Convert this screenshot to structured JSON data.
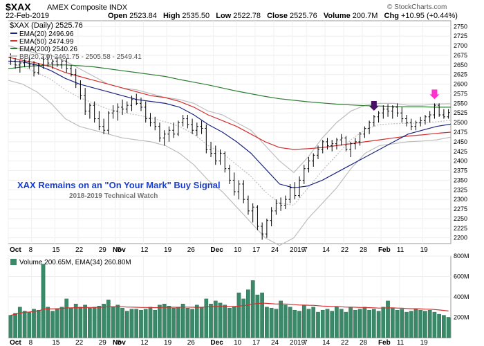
{
  "header": {
    "ticker": "$XAX",
    "name": "AMEX Composite INDX",
    "date": "22-Feb-2019",
    "brand": "© StockCharts.com",
    "open_label": "Open",
    "open": "2523.84",
    "high_label": "High",
    "high": "2535.50",
    "low_label": "Low",
    "low": "2522.78",
    "close_label": "Close",
    "close": "2525.76",
    "volume_label": "Volume",
    "volume": "200.7M",
    "chg_label": "Chg",
    "chg": "+10.95 (+0.44%)"
  },
  "legend": {
    "price": "$XAX (Daily) 2525.76",
    "ema20": "EMA(20) 2496.96",
    "ema50": "EMA(50) 2474.99",
    "ema200": "EMA(200) 2540.26",
    "bb": "BB(20,2.0) 2461.75 - 2505.58 - 2549.41",
    "volume": "Volume 200.65M, EMA(34) 260.80M"
  },
  "annotation": {
    "title": "XAX Remains on an \"On Your Mark\" Buy Signal",
    "subtitle": "2018-2019 Technical Watch"
  },
  "colors": {
    "ema20": "#1a237e",
    "ema50": "#d32f2f",
    "ema200": "#2e7d32",
    "bb": "#bdbdbd",
    "volume": "#3a8a6a",
    "arrow1": "#4a0f66",
    "arrow2": "#ff33cc"
  },
  "chart_data": {
    "type": "line",
    "price_axis": {
      "ticks": [
        2200,
        2225,
        2250,
        2275,
        2300,
        2325,
        2350,
        2375,
        2400,
        2425,
        2450,
        2475,
        2500,
        2525,
        2550,
        2575,
        2600,
        2625,
        2650,
        2675,
        2700,
        2725,
        2750
      ],
      "range": [
        2185,
        2765
      ]
    },
    "volume_axis": {
      "ticks": [
        "200M",
        "400M",
        "600M",
        "800M"
      ],
      "values": [
        200,
        400,
        600,
        800
      ],
      "range": [
        0,
        800
      ]
    },
    "x_labels": [
      "Oct",
      "8",
      "15",
      "22",
      "29",
      "Nov",
      "5",
      "12",
      "19",
      "26",
      "Dec",
      "10",
      "17",
      "24",
      "2019",
      "7",
      "14",
      "22",
      "28",
      "Feb",
      "11",
      "19"
    ],
    "x_label_index": [
      0,
      5,
      10,
      15,
      20,
      23,
      24,
      29,
      34,
      39,
      44,
      49,
      53,
      57,
      61,
      64,
      68,
      72,
      76,
      80,
      84,
      89
    ],
    "bars": [
      {
        "o": 2670,
        "h": 2680,
        "l": 2650,
        "c": 2660
      },
      {
        "o": 2660,
        "h": 2668,
        "l": 2640,
        "c": 2650
      },
      {
        "o": 2650,
        "h": 2662,
        "l": 2630,
        "c": 2655
      },
      {
        "o": 2655,
        "h": 2665,
        "l": 2645,
        "c": 2660
      },
      {
        "o": 2660,
        "h": 2670,
        "l": 2640,
        "c": 2650
      },
      {
        "o": 2650,
        "h": 2660,
        "l": 2620,
        "c": 2630
      },
      {
        "o": 2630,
        "h": 2655,
        "l": 2625,
        "c": 2650
      },
      {
        "o": 2650,
        "h": 2672,
        "l": 2640,
        "c": 2665
      },
      {
        "o": 2665,
        "h": 2675,
        "l": 2645,
        "c": 2655
      },
      {
        "o": 2655,
        "h": 2665,
        "l": 2640,
        "c": 2660
      },
      {
        "o": 2660,
        "h": 2670,
        "l": 2645,
        "c": 2650
      },
      {
        "o": 2650,
        "h": 2665,
        "l": 2640,
        "c": 2660
      },
      {
        "o": 2660,
        "h": 2668,
        "l": 2630,
        "c": 2640
      },
      {
        "o": 2640,
        "h": 2650,
        "l": 2620,
        "c": 2625
      },
      {
        "o": 2625,
        "h": 2640,
        "l": 2590,
        "c": 2600
      },
      {
        "o": 2600,
        "h": 2610,
        "l": 2560,
        "c": 2570
      },
      {
        "o": 2570,
        "h": 2590,
        "l": 2520,
        "c": 2530
      },
      {
        "o": 2530,
        "h": 2550,
        "l": 2510,
        "c": 2545
      },
      {
        "o": 2545,
        "h": 2555,
        "l": 2500,
        "c": 2510
      },
      {
        "o": 2510,
        "h": 2530,
        "l": 2480,
        "c": 2490
      },
      {
        "o": 2490,
        "h": 2510,
        "l": 2470,
        "c": 2480
      },
      {
        "o": 2480,
        "h": 2530,
        "l": 2470,
        "c": 2525
      },
      {
        "o": 2525,
        "h": 2545,
        "l": 2510,
        "c": 2530
      },
      {
        "o": 2530,
        "h": 2550,
        "l": 2505,
        "c": 2540
      },
      {
        "o": 2540,
        "h": 2560,
        "l": 2520,
        "c": 2535
      },
      {
        "o": 2535,
        "h": 2555,
        "l": 2525,
        "c": 2545
      },
      {
        "o": 2545,
        "h": 2570,
        "l": 2530,
        "c": 2560
      },
      {
        "o": 2560,
        "h": 2575,
        "l": 2545,
        "c": 2550
      },
      {
        "o": 2550,
        "h": 2565,
        "l": 2530,
        "c": 2540
      },
      {
        "o": 2540,
        "h": 2555,
        "l": 2500,
        "c": 2510
      },
      {
        "o": 2510,
        "h": 2525,
        "l": 2490,
        "c": 2500
      },
      {
        "o": 2500,
        "h": 2515,
        "l": 2480,
        "c": 2490
      },
      {
        "o": 2490,
        "h": 2500,
        "l": 2450,
        "c": 2460
      },
      {
        "o": 2460,
        "h": 2480,
        "l": 2440,
        "c": 2470
      },
      {
        "o": 2470,
        "h": 2490,
        "l": 2450,
        "c": 2480
      },
      {
        "o": 2480,
        "h": 2500,
        "l": 2460,
        "c": 2470
      },
      {
        "o": 2470,
        "h": 2505,
        "l": 2465,
        "c": 2500
      },
      {
        "o": 2500,
        "h": 2520,
        "l": 2490,
        "c": 2510
      },
      {
        "o": 2510,
        "h": 2520,
        "l": 2485,
        "c": 2495
      },
      {
        "o": 2495,
        "h": 2510,
        "l": 2470,
        "c": 2480
      },
      {
        "o": 2480,
        "h": 2500,
        "l": 2465,
        "c": 2490
      },
      {
        "o": 2490,
        "h": 2505,
        "l": 2470,
        "c": 2485
      },
      {
        "o": 2485,
        "h": 2495,
        "l": 2420,
        "c": 2430
      },
      {
        "o": 2430,
        "h": 2450,
        "l": 2410,
        "c": 2420
      },
      {
        "o": 2420,
        "h": 2440,
        "l": 2390,
        "c": 2400
      },
      {
        "o": 2400,
        "h": 2430,
        "l": 2390,
        "c": 2420
      },
      {
        "o": 2420,
        "h": 2425,
        "l": 2370,
        "c": 2380
      },
      {
        "o": 2380,
        "h": 2390,
        "l": 2340,
        "c": 2350
      },
      {
        "o": 2350,
        "h": 2370,
        "l": 2310,
        "c": 2320
      },
      {
        "o": 2320,
        "h": 2350,
        "l": 2300,
        "c": 2340
      },
      {
        "o": 2340,
        "h": 2350,
        "l": 2290,
        "c": 2300
      },
      {
        "o": 2300,
        "h": 2310,
        "l": 2260,
        "c": 2270
      },
      {
        "o": 2270,
        "h": 2290,
        "l": 2240,
        "c": 2280
      },
      {
        "o": 2280,
        "h": 2285,
        "l": 2220,
        "c": 2230
      },
      {
        "o": 2230,
        "h": 2240,
        "l": 2195,
        "c": 2210
      },
      {
        "o": 2210,
        "h": 2250,
        "l": 2200,
        "c": 2245
      },
      {
        "o": 2245,
        "h": 2280,
        "l": 2230,
        "c": 2270
      },
      {
        "o": 2270,
        "h": 2300,
        "l": 2260,
        "c": 2290
      },
      {
        "o": 2290,
        "h": 2305,
        "l": 2270,
        "c": 2285
      },
      {
        "o": 2285,
        "h": 2310,
        "l": 2275,
        "c": 2300
      },
      {
        "o": 2300,
        "h": 2340,
        "l": 2290,
        "c": 2330
      },
      {
        "o": 2330,
        "h": 2345,
        "l": 2300,
        "c": 2310
      },
      {
        "o": 2310,
        "h": 2360,
        "l": 2305,
        "c": 2350
      },
      {
        "o": 2350,
        "h": 2390,
        "l": 2340,
        "c": 2380
      },
      {
        "o": 2380,
        "h": 2410,
        "l": 2370,
        "c": 2400
      },
      {
        "o": 2400,
        "h": 2420,
        "l": 2385,
        "c": 2415
      },
      {
        "o": 2415,
        "h": 2440,
        "l": 2405,
        "c": 2430
      },
      {
        "o": 2430,
        "h": 2455,
        "l": 2420,
        "c": 2450
      },
      {
        "o": 2450,
        "h": 2460,
        "l": 2430,
        "c": 2440
      },
      {
        "o": 2440,
        "h": 2455,
        "l": 2425,
        "c": 2445
      },
      {
        "o": 2445,
        "h": 2460,
        "l": 2430,
        "c": 2455
      },
      {
        "o": 2455,
        "h": 2470,
        "l": 2440,
        "c": 2460
      },
      {
        "o": 2460,
        "h": 2465,
        "l": 2425,
        "c": 2430
      },
      {
        "o": 2430,
        "h": 2450,
        "l": 2410,
        "c": 2445
      },
      {
        "o": 2445,
        "h": 2460,
        "l": 2430,
        "c": 2450
      },
      {
        "o": 2450,
        "h": 2475,
        "l": 2440,
        "c": 2470
      },
      {
        "o": 2470,
        "h": 2490,
        "l": 2460,
        "c": 2485
      },
      {
        "o": 2485,
        "h": 2505,
        "l": 2470,
        "c": 2500
      },
      {
        "o": 2500,
        "h": 2520,
        "l": 2490,
        "c": 2515
      },
      {
        "o": 2515,
        "h": 2530,
        "l": 2500,
        "c": 2525
      },
      {
        "o": 2525,
        "h": 2545,
        "l": 2510,
        "c": 2535
      },
      {
        "o": 2535,
        "h": 2548,
        "l": 2515,
        "c": 2530
      },
      {
        "o": 2530,
        "h": 2545,
        "l": 2510,
        "c": 2540
      },
      {
        "o": 2540,
        "h": 2550,
        "l": 2515,
        "c": 2525
      },
      {
        "o": 2525,
        "h": 2540,
        "l": 2500,
        "c": 2510
      },
      {
        "o": 2510,
        "h": 2520,
        "l": 2490,
        "c": 2500
      },
      {
        "o": 2500,
        "h": 2510,
        "l": 2480,
        "c": 2490
      },
      {
        "o": 2490,
        "h": 2505,
        "l": 2480,
        "c": 2500
      },
      {
        "o": 2500,
        "h": 2515,
        "l": 2490,
        "c": 2505
      },
      {
        "o": 2505,
        "h": 2520,
        "l": 2495,
        "c": 2515
      },
      {
        "o": 2515,
        "h": 2530,
        "l": 2500,
        "c": 2520
      },
      {
        "o": 2520,
        "h": 2550,
        "l": 2510,
        "c": 2545
      },
      {
        "o": 2545,
        "h": 2550,
        "l": 2515,
        "c": 2520
      },
      {
        "o": 2520,
        "h": 2535,
        "l": 2510,
        "c": 2515
      },
      {
        "o": 2515,
        "h": 2535,
        "l": 2510,
        "c": 2526
      }
    ],
    "ema20": [
      2660,
      2658,
      2650,
      2635,
      2615,
      2600,
      2590,
      2580,
      2570,
      2560,
      2555,
      2550,
      2540,
      2520,
      2495,
      2475,
      2450,
      2420,
      2380,
      2340,
      2330,
      2335,
      2350,
      2370,
      2390,
      2410,
      2430,
      2450,
      2470,
      2480,
      2490,
      2496
    ],
    "ema50": [
      2670,
      2662,
      2655,
      2645,
      2630,
      2620,
      2610,
      2600,
      2590,
      2580,
      2570,
      2565,
      2555,
      2540,
      2520,
      2505,
      2490,
      2470,
      2450,
      2435,
      2430,
      2432,
      2435,
      2440,
      2445,
      2450,
      2455,
      2460,
      2465,
      2468,
      2472,
      2475
    ],
    "ema200": [
      2640,
      2645,
      2648,
      2650,
      2650,
      2648,
      2645,
      2640,
      2635,
      2630,
      2625,
      2620,
      2612,
      2605,
      2598,
      2590,
      2582,
      2575,
      2568,
      2562,
      2558,
      2554,
      2551,
      2548,
      2546,
      2544,
      2543,
      2542,
      2541,
      2541,
      2540,
      2540
    ],
    "bb_upper": [
      2700,
      2690,
      2680,
      2675,
      2660,
      2640,
      2620,
      2600,
      2590,
      2585,
      2575,
      2565,
      2560,
      2550,
      2530,
      2520,
      2500,
      2480,
      2440,
      2400,
      2370,
      2410,
      2460,
      2500,
      2530,
      2545,
      2550,
      2550,
      2545,
      2545,
      2548,
      2549
    ],
    "bb_lower": [
      2610,
      2600,
      2580,
      2550,
      2510,
      2490,
      2480,
      2470,
      2460,
      2455,
      2450,
      2440,
      2420,
      2390,
      2350,
      2320,
      2280,
      2240,
      2200,
      2180,
      2200,
      2250,
      2290,
      2330,
      2380,
      2420,
      2440,
      2445,
      2450,
      2452,
      2455,
      2462
    ],
    "bb_mid": [
      2655,
      2645,
      2630,
      2612,
      2585,
      2565,
      2550,
      2535,
      2525,
      2520,
      2512,
      2502,
      2490,
      2470,
      2440,
      2420,
      2390,
      2360,
      2320,
      2290,
      2285,
      2330,
      2375,
      2415,
      2455,
      2482,
      2495,
      2497,
      2498,
      2499,
      2502,
      2506
    ],
    "volume": [
      220,
      240,
      300,
      260,
      250,
      280,
      270,
      720,
      300,
      260,
      280,
      300,
      380,
      290,
      330,
      300,
      320,
      290,
      300,
      310,
      330,
      370,
      300,
      320,
      290,
      260,
      280,
      280,
      270,
      280,
      300,
      270,
      320,
      330,
      310,
      290,
      300,
      330,
      290,
      280,
      320,
      300,
      380,
      330,
      360,
      340,
      320,
      290,
      300,
      440,
      380,
      470,
      560,
      420,
      440,
      300,
      290,
      280,
      360,
      320,
      300,
      270,
      260,
      320,
      280,
      300,
      250,
      270,
      280,
      260,
      300,
      280,
      250,
      300,
      270,
      280,
      300,
      270,
      280,
      260,
      300,
      360,
      290,
      270,
      280,
      250,
      260,
      280,
      270,
      260,
      270,
      250,
      230,
      220,
      200
    ],
    "volume_ema": [
      220,
      228,
      240,
      248,
      252,
      258,
      262,
      280,
      282,
      282,
      284,
      286,
      292,
      292,
      294,
      294,
      296,
      296,
      296,
      298,
      300,
      304,
      304,
      304,
      304,
      300,
      300,
      298,
      296,
      296,
      296,
      294,
      296,
      298,
      298,
      298,
      298,
      300,
      300,
      298,
      298,
      298,
      302,
      304,
      306,
      306,
      306,
      306,
      305,
      310,
      314,
      320,
      330,
      334,
      338,
      336,
      333,
      330,
      331,
      330,
      328,
      324,
      320,
      320,
      318,
      317,
      313,
      310,
      308,
      305,
      305,
      303,
      300,
      300,
      298,
      296,
      296,
      294,
      293,
      290,
      290,
      293,
      292,
      290,
      289,
      286,
      284,
      284,
      282,
      280,
      279,
      276,
      272,
      267,
      262
    ]
  },
  "arrows": [
    {
      "bar": 78,
      "color_key": "arrow1"
    },
    {
      "bar": 91,
      "color_key": "arrow2"
    }
  ]
}
